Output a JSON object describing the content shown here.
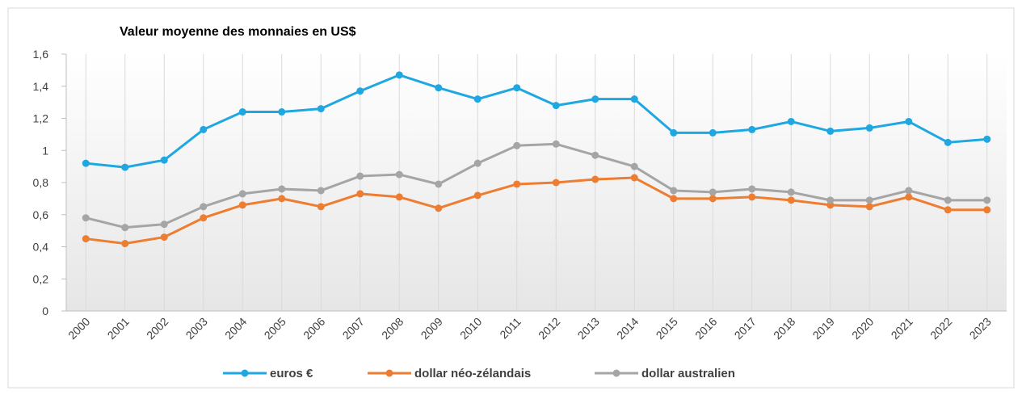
{
  "chart_data": {
    "type": "line",
    "title": "Valeur moyenne des monnaies en US$",
    "categories": [
      "2000",
      "2001",
      "2002",
      "2003",
      "2004",
      "2005",
      "2006",
      "2007",
      "2008",
      "2009",
      "2010",
      "2011",
      "2012",
      "2013",
      "2014",
      "2015",
      "2016",
      "2017",
      "2018",
      "2019",
      "2020",
      "2021",
      "2022",
      "2023"
    ],
    "series": [
      {
        "name": "euros €",
        "color": "#1ea7e1",
        "values": [
          0.92,
          0.895,
          0.94,
          1.13,
          1.24,
          1.24,
          1.26,
          1.37,
          1.47,
          1.39,
          1.32,
          1.39,
          1.28,
          1.32,
          1.32,
          1.11,
          1.11,
          1.13,
          1.18,
          1.12,
          1.14,
          1.18,
          1.05,
          1.07
        ]
      },
      {
        "name": "dollar néo-zélandais",
        "color": "#ed7d31",
        "values": [
          0.45,
          0.42,
          0.46,
          0.58,
          0.66,
          0.7,
          0.65,
          0.73,
          0.71,
          0.64,
          0.72,
          0.79,
          0.8,
          0.82,
          0.83,
          0.7,
          0.7,
          0.71,
          0.69,
          0.66,
          0.65,
          0.71,
          0.63,
          0.63
        ]
      },
      {
        "name": "dollar australien",
        "color": "#a5a5a5",
        "values": [
          0.58,
          0.52,
          0.54,
          0.65,
          0.73,
          0.76,
          0.75,
          0.84,
          0.85,
          0.79,
          0.92,
          1.03,
          1.04,
          0.97,
          0.9,
          0.75,
          0.74,
          0.76,
          0.74,
          0.69,
          0.69,
          0.75,
          0.69,
          0.69
        ]
      }
    ],
    "ylim": [
      0,
      1.6
    ],
    "yticks": [
      0,
      {
        "value": 0.2,
        "label": "0,2"
      },
      {
        "value": 0.4,
        "label": "0,4"
      },
      {
        "value": 0.6,
        "label": "0,6"
      },
      {
        "value": 0.8,
        "label": "0,8"
      },
      1,
      {
        "value": 1.2,
        "label": "1,2"
      },
      {
        "value": 1.4,
        "label": "1,4"
      },
      {
        "value": 1.6,
        "label": "1,6"
      }
    ],
    "grid": true,
    "legend": "bottom"
  }
}
